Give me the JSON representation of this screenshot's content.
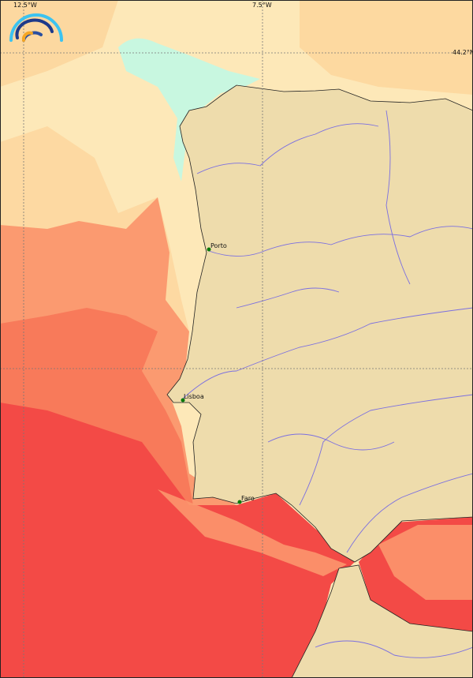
{
  "map": {
    "grid_labels": {
      "lon1": "12.5°W",
      "lon2": "7.5°W",
      "lat1": "44.2°N"
    },
    "cities": [
      {
        "name": "Porto"
      },
      {
        "name": "Lisboa"
      },
      {
        "name": "Faro"
      }
    ],
    "logo_icon": "rainbow-arcs-logo",
    "colors": {
      "land": "#eedcac",
      "rivers": "#7b6fe0",
      "sea_cool": "#c8f7e0",
      "sea_light": "#fde8b8",
      "sea_pale_orange": "#fcd59c",
      "sea_orange": "#fb9a70",
      "sea_warm": "#f87a5a",
      "sea_hot": "#f34a46",
      "city_marker": "#0a7a0a"
    }
  }
}
